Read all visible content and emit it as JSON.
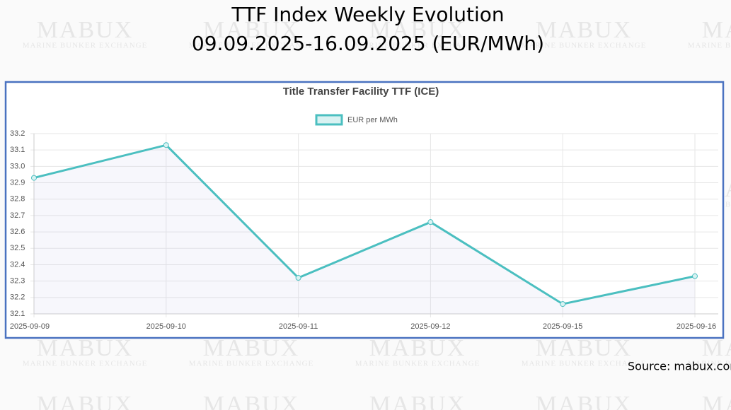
{
  "watermark": {
    "title": "MABUX",
    "subtitle": "MARINE BUNKER EXCHANGE"
  },
  "chart_data": {
    "type": "line",
    "title": "TTF Index Weekly Evolution",
    "subtitle": "09.09.2025-16.09.2025 (EUR/MWh)",
    "chart_title": "Title Transfer Facility TTF (ICE)",
    "source": "Source: mabux.com",
    "categories": [
      "2025-09-09",
      "2025-09-10",
      "2025-09-11",
      "2025-09-12",
      "2025-09-15",
      "2025-09-16"
    ],
    "series": [
      {
        "name": "EUR per MWh",
        "color": "#4bbfc0",
        "values": [
          32.93,
          33.13,
          32.32,
          32.66,
          32.16,
          32.33
        ]
      }
    ],
    "ylim": [
      32.1,
      33.2
    ],
    "yticks": [
      32.1,
      32.2,
      32.3,
      32.4,
      32.5,
      32.6,
      32.7,
      32.8,
      32.9,
      {
        "value": 33,
        "label": "33.0"
      },
      33.1,
      33.2
    ],
    "grid": true,
    "legend": "top"
  }
}
